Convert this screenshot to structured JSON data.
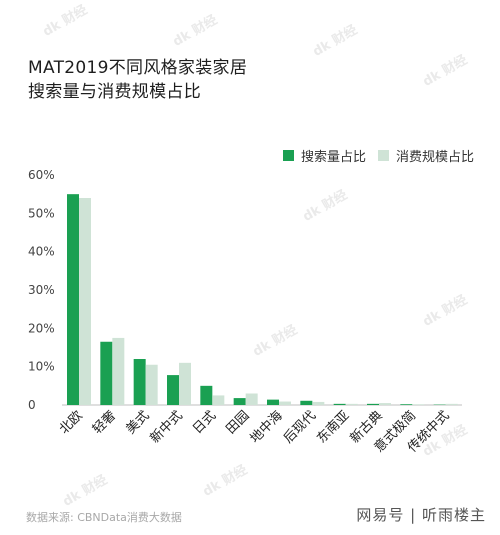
{
  "chart_data": {
    "type": "bar",
    "title_lines": [
      "MAT2019不同风格家装家居",
      "搜索量与消费规模占比"
    ],
    "categories": [
      "北欧",
      "轻奢",
      "美式",
      "新中式",
      "日式",
      "田园",
      "地中海",
      "后现代",
      "东南亚",
      "新古典",
      "意式极简",
      "传统中式"
    ],
    "series": [
      {
        "name": "搜索量占比",
        "color": "#1aa052",
        "values": [
          55,
          16.5,
          12,
          7.8,
          5,
          1.8,
          1.4,
          1.1,
          0.3,
          0.3,
          0.2,
          0.1
        ]
      },
      {
        "name": "消费规模占比",
        "color": "#cfe3d6",
        "values": [
          54,
          17.5,
          10.5,
          11,
          2.5,
          3,
          0.9,
          0.8,
          0.3,
          0.5,
          0.2,
          0.3
        ]
      }
    ],
    "y_ticks": [
      "0",
      "10%",
      "20%",
      "30%",
      "40%",
      "50%",
      "60%"
    ],
    "ylim": [
      0,
      60
    ],
    "legend_position": "top-right",
    "grid": false
  },
  "footer": {
    "source": "数据来源: CBNData消费大数据",
    "brand": "网易号 | 听雨楼主"
  },
  "watermark": "dk 财经"
}
